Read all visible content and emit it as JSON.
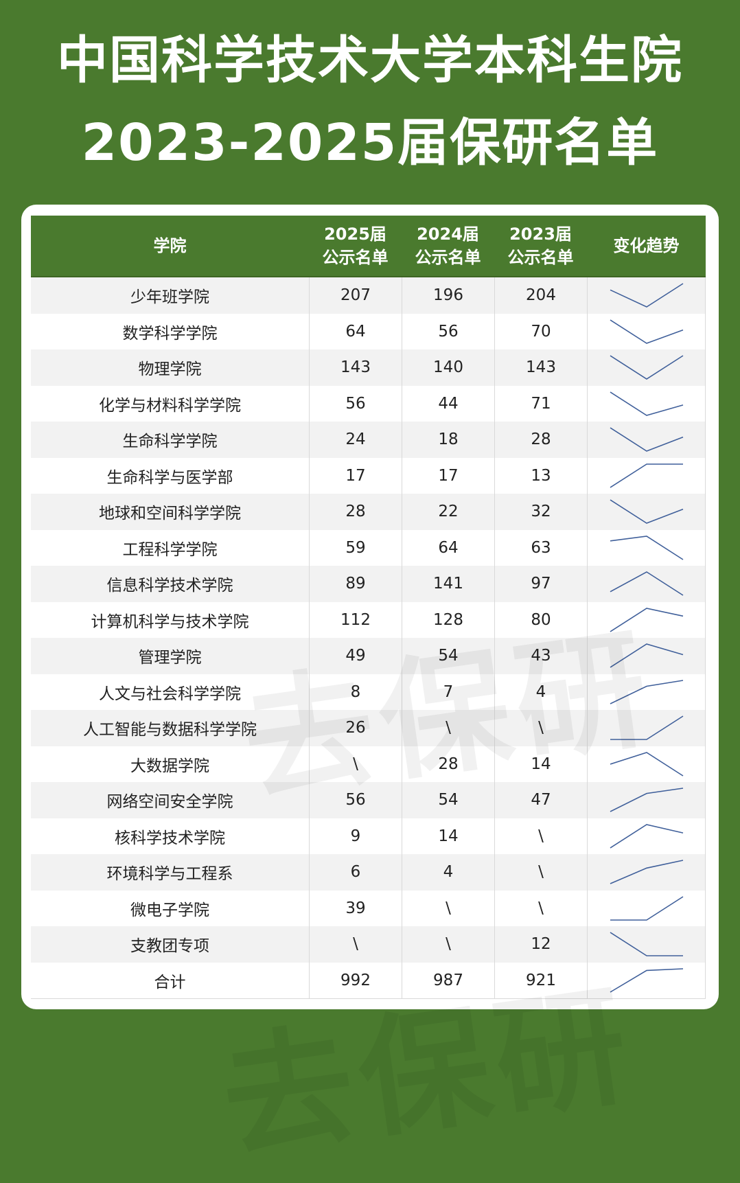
{
  "title": {
    "line1": "中国科学技术大学本科生院",
    "line2": "2023-2025届保研名单"
  },
  "watermark": "去保研",
  "header": {
    "college": "学院",
    "y2025_top": "2025届",
    "y2025_bottom": "公示名单",
    "y2024_top": "2024届",
    "y2024_bottom": "公示名单",
    "y2023_top": "2023届",
    "y2023_bottom": "公示名单",
    "trend": "变化趋势"
  },
  "colors": {
    "header_bg": "#4a7a2e",
    "sparkline": "#3f5f9a"
  },
  "rows": [
    {
      "college": "少年班学院",
      "y2025": "207",
      "y2024": "196",
      "y2023": "204"
    },
    {
      "college": "数学科学学院",
      "y2025": "64",
      "y2024": "56",
      "y2023": "70"
    },
    {
      "college": "物理学院",
      "y2025": "143",
      "y2024": "140",
      "y2023": "143"
    },
    {
      "college": "化学与材料科学学院",
      "y2025": "56",
      "y2024": "44",
      "y2023": "71"
    },
    {
      "college": "生命科学学院",
      "y2025": "24",
      "y2024": "18",
      "y2023": "28"
    },
    {
      "college": "生命科学与医学部",
      "y2025": "17",
      "y2024": "17",
      "y2023": "13"
    },
    {
      "college": "地球和空间科学学院",
      "y2025": "28",
      "y2024": "22",
      "y2023": "32"
    },
    {
      "college": "工程科学学院",
      "y2025": "59",
      "y2024": "64",
      "y2023": "63"
    },
    {
      "college": "信息科学技术学院",
      "y2025": "89",
      "y2024": "141",
      "y2023": "97"
    },
    {
      "college": "计算机科学与技术学院",
      "y2025": "112",
      "y2024": "128",
      "y2023": "80"
    },
    {
      "college": "管理学院",
      "y2025": "49",
      "y2024": "54",
      "y2023": "43"
    },
    {
      "college": "人文与社会科学学院",
      "y2025": "8",
      "y2024": "7",
      "y2023": "4"
    },
    {
      "college": "人工智能与数据科学学院",
      "y2025": "26",
      "y2024": "\\",
      "y2023": "\\"
    },
    {
      "college": "大数据学院",
      "y2025": "\\",
      "y2024": "28",
      "y2023": "14"
    },
    {
      "college": "网络空间安全学院",
      "y2025": "56",
      "y2024": "54",
      "y2023": "47"
    },
    {
      "college": "核科学技术学院",
      "y2025": "9",
      "y2024": "14",
      "y2023": "\\"
    },
    {
      "college": "环境科学与工程系",
      "y2025": "6",
      "y2024": "4",
      "y2023": "\\"
    },
    {
      "college": "微电子学院",
      "y2025": "39",
      "y2024": "\\",
      "y2023": "\\"
    },
    {
      "college": "支教团专项",
      "y2025": "\\",
      "y2024": "\\",
      "y2023": "12"
    },
    {
      "college": "合计",
      "y2025": "992",
      "y2024": "987",
      "y2023": "921"
    }
  ]
}
